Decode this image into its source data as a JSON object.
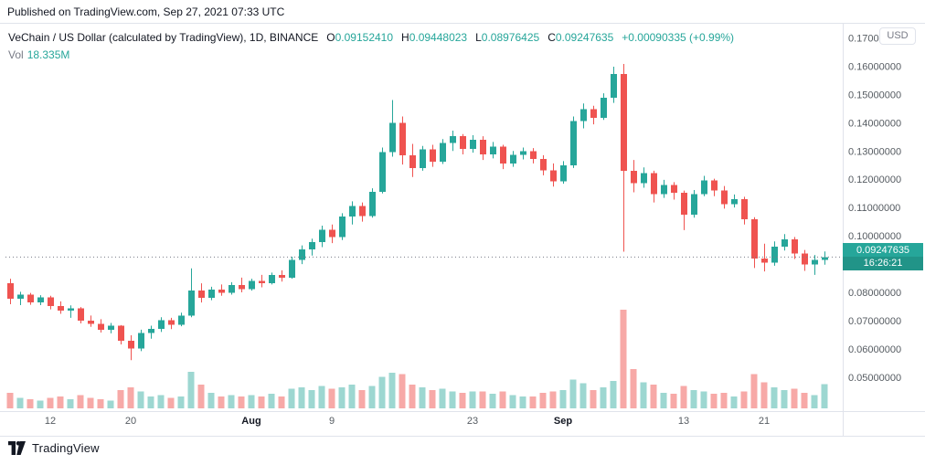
{
  "header": {
    "published": "Published on TradingView.com, Sep 27, 2021 07:33 UTC"
  },
  "legend": {
    "symbol": "VeChain / US Dollar (calculated by TradingView), 1D, BINANCE",
    "o_label": "O",
    "o": "0.09152410",
    "h_label": "H",
    "h": "0.09448023",
    "l_label": "L",
    "l": "0.08976425",
    "c_label": "C",
    "c": "0.09247635",
    "change": "+0.00090335",
    "change_pct": "(+0.99%)",
    "vol_label": "Vol",
    "vol_value": "18.335M"
  },
  "price_scale": {
    "currency": "USD",
    "last_price": "0.09247635",
    "countdown": "16:26:21"
  },
  "footer": {
    "brand": "TradingView"
  },
  "colors": {
    "up": "#26a69a",
    "down": "#ef5350",
    "vol_up": "rgba(38,166,154,0.45)",
    "vol_down": "rgba(239,83,80,0.5)",
    "axis_text": "#555b61",
    "month_text": "#131722",
    "grid": "#e0e3eb",
    "last_price_line": "#787b86"
  },
  "chart_data": {
    "type": "candlestick",
    "title": "VeChain / US Dollar, 1D, BINANCE",
    "ylabel": "USD",
    "ylim": [
      0.038,
      0.175
    ],
    "grid": false,
    "legend_position": "top-left",
    "price_ticks": [
      0.17,
      0.16,
      0.15,
      0.14,
      0.13,
      0.12,
      0.11,
      0.1,
      0.08,
      0.07,
      0.06,
      0.05
    ],
    "time_ticks": [
      {
        "i": 4,
        "label": "12"
      },
      {
        "i": 12,
        "label": "20"
      },
      {
        "i": 24,
        "label": "Aug",
        "month": true
      },
      {
        "i": 32,
        "label": "9"
      },
      {
        "i": 46,
        "label": "23"
      },
      {
        "i": 55,
        "label": "Sep",
        "month": true
      },
      {
        "i": 67,
        "label": "13"
      },
      {
        "i": 75,
        "label": "21"
      }
    ],
    "volume_max": 80,
    "volume_unit": "M",
    "last_close": 0.09247635,
    "candles_format": [
      "open",
      "high",
      "low",
      "close",
      "volume_millions"
    ],
    "candles": [
      [
        0.0832,
        0.0848,
        0.0758,
        0.0778,
        12
      ],
      [
        0.0778,
        0.0802,
        0.0755,
        0.0792,
        8
      ],
      [
        0.0792,
        0.0798,
        0.0756,
        0.0765,
        7
      ],
      [
        0.0765,
        0.079,
        0.0755,
        0.0782,
        6
      ],
      [
        0.0782,
        0.0788,
        0.074,
        0.0752,
        8
      ],
      [
        0.0752,
        0.0768,
        0.0724,
        0.0735,
        9
      ],
      [
        0.0735,
        0.0754,
        0.071,
        0.0744,
        7
      ],
      [
        0.0744,
        0.0748,
        0.069,
        0.07,
        10
      ],
      [
        0.07,
        0.0718,
        0.0678,
        0.0688,
        8
      ],
      [
        0.0688,
        0.0705,
        0.0658,
        0.0668,
        7
      ],
      [
        0.0668,
        0.0692,
        0.0655,
        0.0682,
        6
      ],
      [
        0.0682,
        0.0684,
        0.0616,
        0.0628,
        14
      ],
      [
        0.0628,
        0.0648,
        0.056,
        0.0601,
        16
      ],
      [
        0.0601,
        0.0668,
        0.0592,
        0.0656,
        13
      ],
      [
        0.0656,
        0.0682,
        0.0636,
        0.067,
        9
      ],
      [
        0.067,
        0.0712,
        0.066,
        0.0702,
        10
      ],
      [
        0.0702,
        0.071,
        0.067,
        0.0685,
        8
      ],
      [
        0.0685,
        0.0728,
        0.068,
        0.0718,
        9
      ],
      [
        0.0718,
        0.0885,
        0.0712,
        0.0806,
        28
      ],
      [
        0.0806,
        0.0832,
        0.0764,
        0.078,
        18
      ],
      [
        0.078,
        0.082,
        0.0772,
        0.081,
        12
      ],
      [
        0.081,
        0.0828,
        0.0788,
        0.0798,
        9
      ],
      [
        0.0798,
        0.0836,
        0.0792,
        0.0826,
        10
      ],
      [
        0.0826,
        0.0852,
        0.08,
        0.0812,
        9
      ],
      [
        0.0812,
        0.0848,
        0.0806,
        0.084,
        10
      ],
      [
        0.084,
        0.0862,
        0.0818,
        0.0832,
        9
      ],
      [
        0.0832,
        0.087,
        0.0828,
        0.0861,
        11
      ],
      [
        0.0861,
        0.0878,
        0.0838,
        0.0852,
        9
      ],
      [
        0.0852,
        0.0926,
        0.0848,
        0.0915,
        15
      ],
      [
        0.0915,
        0.0966,
        0.09,
        0.0952,
        16
      ],
      [
        0.0952,
        0.099,
        0.093,
        0.0978,
        14
      ],
      [
        0.0978,
        0.1036,
        0.096,
        0.1022,
        17
      ],
      [
        0.1022,
        0.104,
        0.0974,
        0.0995,
        15
      ],
      [
        0.0995,
        0.108,
        0.0985,
        0.1068,
        16
      ],
      [
        0.1068,
        0.1122,
        0.104,
        0.1106,
        18
      ],
      [
        0.1106,
        0.1118,
        0.105,
        0.107,
        14
      ],
      [
        0.107,
        0.1168,
        0.1064,
        0.1155,
        17
      ],
      [
        0.1155,
        0.1312,
        0.115,
        0.1296,
        24
      ],
      [
        0.1296,
        0.148,
        0.128,
        0.14,
        27
      ],
      [
        0.14,
        0.1422,
        0.1252,
        0.1285,
        26
      ],
      [
        0.1285,
        0.1325,
        0.1208,
        0.124,
        18
      ],
      [
        0.124,
        0.1318,
        0.123,
        0.1306,
        16
      ],
      [
        0.1306,
        0.1322,
        0.1244,
        0.1262,
        14
      ],
      [
        0.1262,
        0.1342,
        0.1254,
        0.1328,
        15
      ],
      [
        0.1328,
        0.1372,
        0.13,
        0.1352,
        13
      ],
      [
        0.1352,
        0.136,
        0.1288,
        0.1308,
        12
      ],
      [
        0.1308,
        0.1356,
        0.1294,
        0.134,
        13
      ],
      [
        0.134,
        0.1352,
        0.1268,
        0.1288,
        13
      ],
      [
        0.1288,
        0.1332,
        0.1274,
        0.1316,
        11
      ],
      [
        0.1316,
        0.1322,
        0.1236,
        0.1255,
        13
      ],
      [
        0.1255,
        0.13,
        0.1244,
        0.1286,
        10
      ],
      [
        0.1286,
        0.1312,
        0.127,
        0.13,
        9
      ],
      [
        0.13,
        0.131,
        0.1256,
        0.1272,
        9
      ],
      [
        0.1272,
        0.1285,
        0.1214,
        0.1232,
        12
      ],
      [
        0.1232,
        0.1256,
        0.1174,
        0.1192,
        13
      ],
      [
        0.1192,
        0.1264,
        0.1184,
        0.1249,
        14
      ],
      [
        0.1249,
        0.1422,
        0.124,
        0.1406,
        22
      ],
      [
        0.1406,
        0.1468,
        0.138,
        0.1448,
        19
      ],
      [
        0.1448,
        0.146,
        0.1394,
        0.1418,
        14
      ],
      [
        0.1418,
        0.1504,
        0.141,
        0.1488,
        16
      ],
      [
        0.1488,
        0.1598,
        0.147,
        0.1572,
        21
      ],
      [
        0.1572,
        0.1608,
        0.0944,
        0.123,
        75
      ],
      [
        0.123,
        0.1268,
        0.1154,
        0.1186,
        30
      ],
      [
        0.1186,
        0.1242,
        0.117,
        0.1222,
        20
      ],
      [
        0.1222,
        0.123,
        0.1118,
        0.1148,
        18
      ],
      [
        0.1148,
        0.1198,
        0.1134,
        0.118,
        12
      ],
      [
        0.118,
        0.119,
        0.1128,
        0.1152,
        11
      ],
      [
        0.1152,
        0.116,
        0.102,
        0.1075,
        17
      ],
      [
        0.1075,
        0.1162,
        0.1064,
        0.1148,
        14
      ],
      [
        0.1148,
        0.1212,
        0.114,
        0.1196,
        13
      ],
      [
        0.1196,
        0.1202,
        0.114,
        0.116,
        11
      ],
      [
        0.116,
        0.1176,
        0.1096,
        0.1112,
        12
      ],
      [
        0.1112,
        0.1146,
        0.11,
        0.113,
        9
      ],
      [
        0.113,
        0.1138,
        0.104,
        0.1058,
        13
      ],
      [
        0.1058,
        0.1066,
        0.0886,
        0.092,
        26
      ],
      [
        0.092,
        0.0972,
        0.0874,
        0.0905,
        20
      ],
      [
        0.0905,
        0.098,
        0.0894,
        0.0962,
        16
      ],
      [
        0.0962,
        0.1006,
        0.0948,
        0.0988,
        14
      ],
      [
        0.0988,
        0.0996,
        0.0918,
        0.0938,
        15
      ],
      [
        0.0938,
        0.095,
        0.0876,
        0.0898,
        12
      ],
      [
        0.0898,
        0.0932,
        0.0862,
        0.0915,
        10
      ],
      [
        0.0915241,
        0.09448023,
        0.08976425,
        0.09247635,
        18.335
      ]
    ]
  }
}
